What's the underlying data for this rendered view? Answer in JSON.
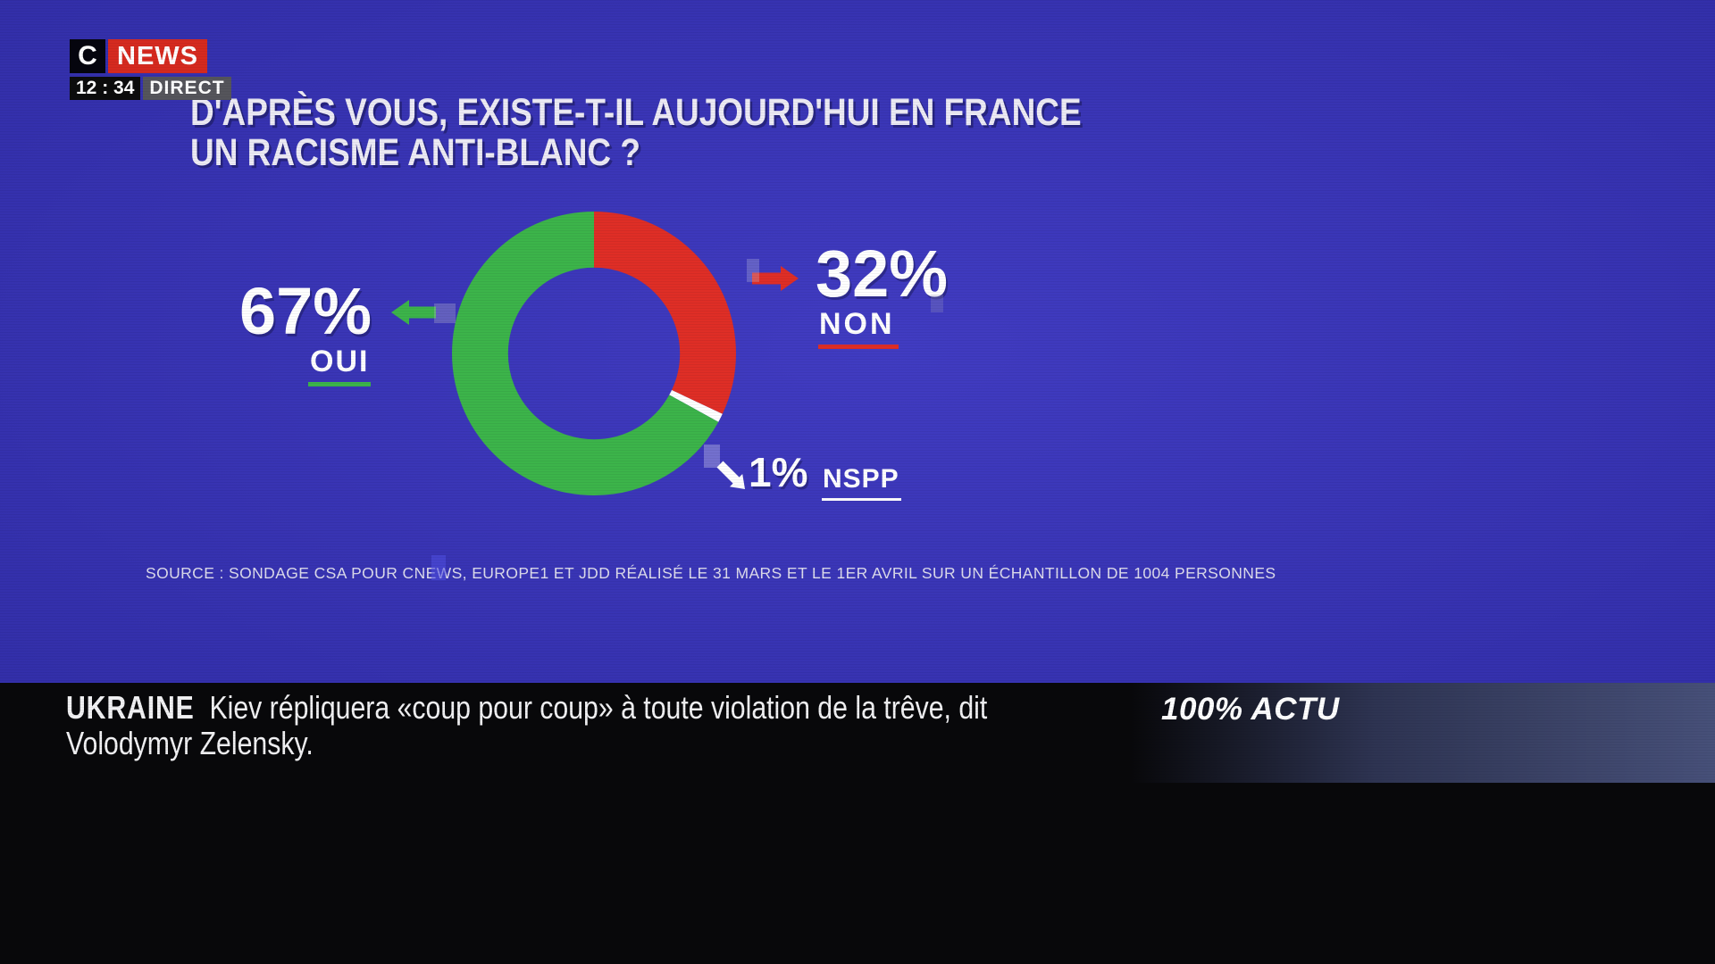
{
  "colors": {
    "background": "#3531ae",
    "green": "#3cb44a",
    "red": "#df2e26",
    "ticker_bg": "#08080a",
    "logo_red": "#d62a1f",
    "logo_dark": "#05050e",
    "badge_gray": "#55555b",
    "time_bg": "#0c0c0c"
  },
  "header": {
    "logo_c": "C",
    "logo_news": "NEWS",
    "time": "12 : 34",
    "direct": "DIRECT"
  },
  "poll": {
    "title_line1": "D'APRÈS VOUS, EXISTE-T-IL AUJOURD'HUI EN FRANCE",
    "title_line2": "UN RACISME ANTI-BLANC ?",
    "source": "SOURCE : SONDAGE CSA POUR CNEWS, EUROPE1 ET JDD RÉALISÉ LE 31 MARS ET LE 1ER AVRIL SUR UN ÉCHANTILLON DE 1004 PERSONNES"
  },
  "chart_data": {
    "type": "pie",
    "donut": true,
    "title": "D'après vous, existe-t-il aujourd'hui en France un racisme anti-blanc ?",
    "categories": [
      "OUI",
      "NON",
      "NSPP"
    ],
    "values": [
      67,
      32,
      1
    ],
    "colors": [
      "#3cb44a",
      "#df2e26",
      "#ffffff"
    ],
    "unit": "%",
    "start_angle_deg": 0,
    "clockwise_draw_order": [
      "NON",
      "NSPP",
      "OUI"
    ],
    "legend_position": "callouts"
  },
  "callouts": {
    "oui": {
      "pct": "67%",
      "label": "OUI"
    },
    "non": {
      "pct": "32%",
      "label": "NON"
    },
    "nspp": {
      "pct": "1%",
      "label": "NSPP"
    }
  },
  "ticker": {
    "tag": "UKRAINE",
    "headline_line1": "Kiev répliquera «coup pour coup» à toute violation de la trêve, dit",
    "headline_line2": "Volodymyr Zelensky.",
    "brand": "100% ACTU"
  }
}
